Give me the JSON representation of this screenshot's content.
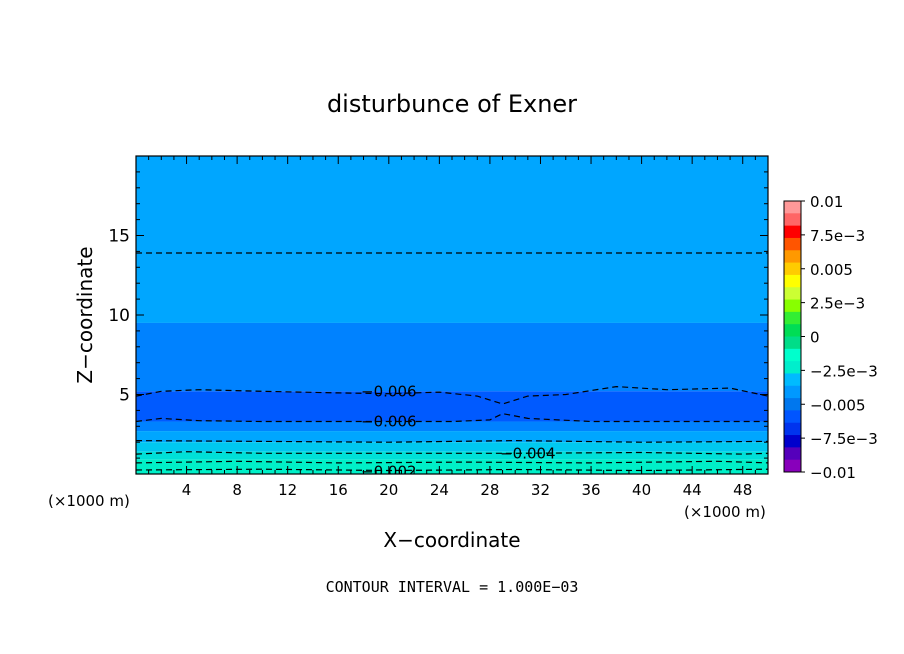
{
  "chart_data": {
    "type": "heatmap",
    "title": "disturbunce of Exner",
    "xlabel": "X−coordinate",
    "ylabel": "Z−coordinate",
    "x_unit": "(×1000 m)",
    "y_unit": "(×1000 m)",
    "xlim": [
      0,
      50
    ],
    "ylim": [
      0,
      20
    ],
    "x_ticks": [
      4,
      8,
      12,
      16,
      20,
      24,
      28,
      32,
      36,
      40,
      44,
      48
    ],
    "y_ticks": [
      5,
      10,
      15
    ],
    "footer": "CONTOUR INTERVAL = 1.000E−03",
    "contour_interval": 0.001,
    "colorbar": {
      "range": [
        -0.01,
        0.01
      ],
      "tick_labels": [
        "0.01",
        "7.5e−3",
        "0.005",
        "2.5e−3",
        "0",
        "−2.5e−3",
        "−0.005",
        "−7.5e−3",
        "−0.01"
      ],
      "tick_values": [
        0.01,
        0.0075,
        0.005,
        0.0025,
        0,
        -0.0025,
        -0.005,
        -0.0075,
        -0.01
      ],
      "colors": [
        "#ff9999",
        "#ff6666",
        "#ff0000",
        "#ff5500",
        "#ff9900",
        "#ffcc00",
        "#ffff00",
        "#ccff33",
        "#88ff00",
        "#33ee33",
        "#00dd55",
        "#00dd88",
        "#00ffcc",
        "#00eecc",
        "#00bbff",
        "#0099ff",
        "#0077ee",
        "#0055ff",
        "#0033ee",
        "#0000cc",
        "#5500bb",
        "#8800bb"
      ]
    },
    "filled_bands": [
      {
        "z_bottom": 9.5,
        "z_top": 20,
        "value": -0.0045,
        "color": "#00a6ff"
      },
      {
        "z_bottom": 5.2,
        "z_top": 9.5,
        "value": -0.0055,
        "color": "#0082ff"
      },
      {
        "z_bottom": 3.3,
        "z_top": 5.2,
        "value": -0.0065,
        "color": "#005aff"
      },
      {
        "z_bottom": 2.7,
        "z_top": 3.3,
        "value": -0.0055,
        "color": "#0082ff"
      },
      {
        "z_bottom": 2.0,
        "z_top": 2.7,
        "value": -0.0045,
        "color": "#00a6ff"
      },
      {
        "z_bottom": 1.4,
        "z_top": 2.0,
        "value": -0.0035,
        "color": "#00c8f0"
      },
      {
        "z_bottom": 0.9,
        "z_top": 1.4,
        "value": -0.0025,
        "color": "#00e0d8"
      },
      {
        "z_bottom": 0.0,
        "z_top": 0.9,
        "value": -0.0015,
        "color": "#00f0c8"
      }
    ],
    "contours": [
      {
        "level": -0.005,
        "label": "",
        "points": [
          [
            0,
            13.9
          ],
          [
            50,
            13.9
          ]
        ]
      },
      {
        "level": -0.006,
        "label": "−0.006",
        "label_at": [
          20,
          5.2
        ],
        "points": [
          [
            0,
            4.9
          ],
          [
            2,
            5.2
          ],
          [
            5,
            5.3
          ],
          [
            10,
            5.2
          ],
          [
            16,
            5.1
          ],
          [
            20,
            5.05
          ],
          [
            24,
            5.15
          ],
          [
            27,
            4.9
          ],
          [
            29,
            4.4
          ],
          [
            31,
            4.9
          ],
          [
            34,
            5.0
          ],
          [
            38,
            5.5
          ],
          [
            42,
            5.3
          ],
          [
            47,
            5.4
          ],
          [
            50,
            4.9
          ]
        ]
      },
      {
        "level": -0.006,
        "label": "−0.006",
        "label_at": [
          20,
          3.3
        ],
        "points": [
          [
            0,
            3.3
          ],
          [
            2,
            3.5
          ],
          [
            5,
            3.35
          ],
          [
            10,
            3.3
          ],
          [
            16,
            3.3
          ],
          [
            20,
            3.3
          ],
          [
            25,
            3.3
          ],
          [
            28,
            3.4
          ],
          [
            29,
            3.8
          ],
          [
            31,
            3.5
          ],
          [
            36,
            3.3
          ],
          [
            42,
            3.3
          ],
          [
            48,
            3.3
          ],
          [
            50,
            3.3
          ]
        ]
      },
      {
        "level": -0.005,
        "label": "",
        "points": [
          [
            0,
            2.1
          ],
          [
            10,
            2.05
          ],
          [
            20,
            2.0
          ],
          [
            30,
            2.1
          ],
          [
            40,
            2.0
          ],
          [
            50,
            2.05
          ]
        ]
      },
      {
        "level": -0.004,
        "label": "−0.004",
        "label_at": [
          31,
          1.3
        ],
        "points": [
          [
            0,
            1.25
          ],
          [
            4,
            1.4
          ],
          [
            10,
            1.3
          ],
          [
            20,
            1.3
          ],
          [
            30,
            1.3
          ],
          [
            40,
            1.35
          ],
          [
            48,
            1.25
          ],
          [
            50,
            1.3
          ]
        ]
      },
      {
        "level": -0.003,
        "label": "",
        "points": [
          [
            0,
            0.7
          ],
          [
            8,
            0.8
          ],
          [
            16,
            0.7
          ],
          [
            26,
            0.75
          ],
          [
            36,
            0.7
          ],
          [
            46,
            0.8
          ],
          [
            50,
            0.7
          ]
        ]
      },
      {
        "level": -0.002,
        "label": "−0.002",
        "label_at": [
          20,
          0.15
        ],
        "points": [
          [
            0,
            0.25
          ],
          [
            10,
            0.3
          ],
          [
            20,
            0.22
          ],
          [
            30,
            0.28
          ],
          [
            40,
            0.22
          ],
          [
            50,
            0.3
          ]
        ]
      }
    ]
  }
}
